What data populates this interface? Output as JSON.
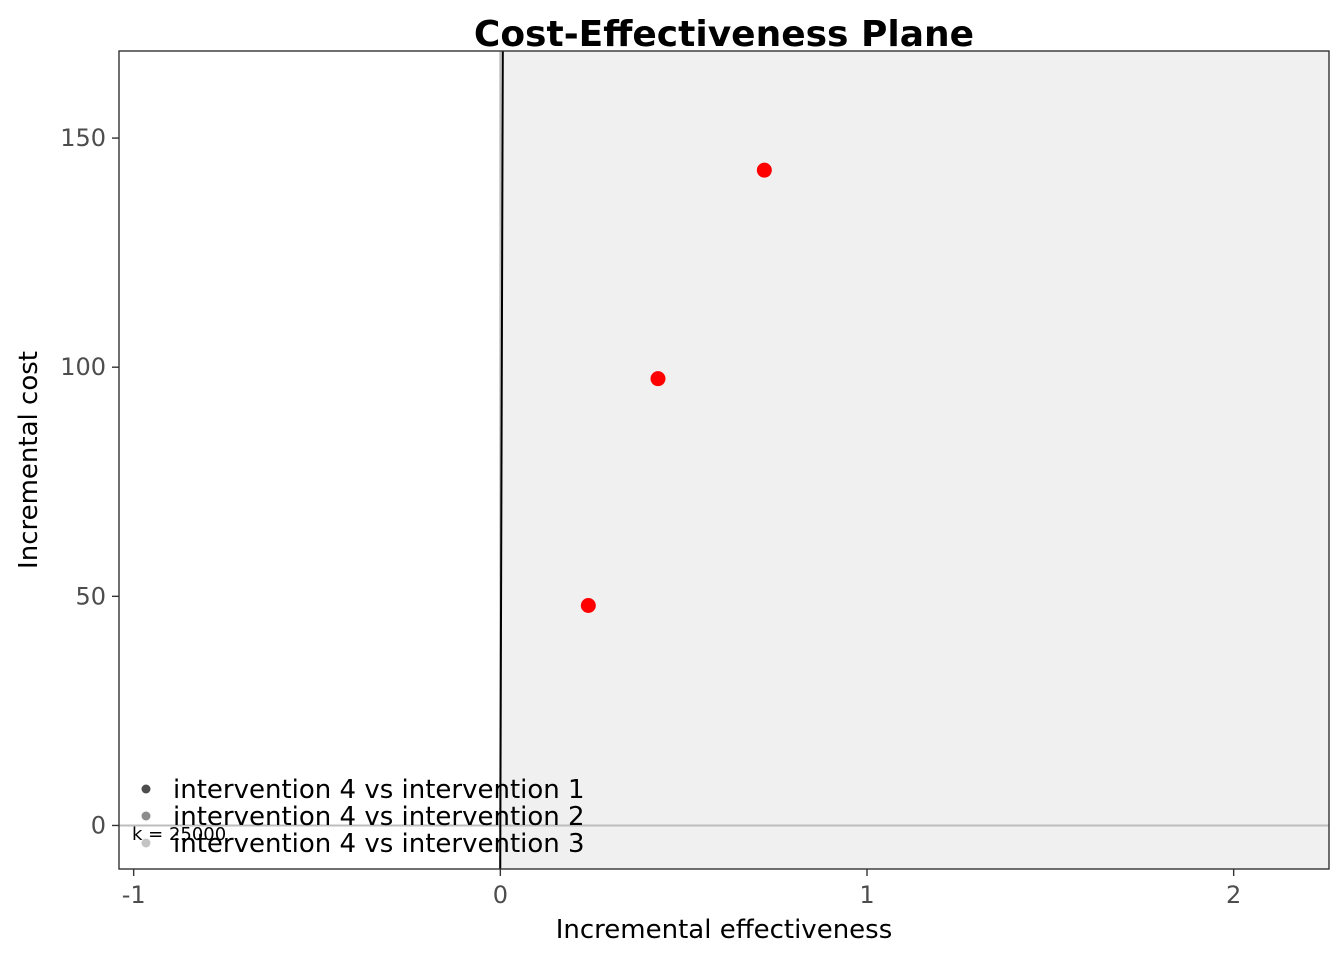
{
  "chart_data": {
    "type": "scatter",
    "title": "Cost-Effectiveness Plane",
    "xlabel": "Incremental effectiveness",
    "ylabel": "Incremental cost",
    "xlim": [
      -1.04,
      2.26
    ],
    "ylim": [
      -9.5,
      169
    ],
    "x_ticks": [
      -1,
      0,
      1,
      2
    ],
    "x_tick_labels": [
      "-1",
      "0",
      "1",
      "2"
    ],
    "y_ticks": [
      0,
      50,
      100,
      150
    ],
    "y_tick_labels": [
      "0",
      "50",
      "100",
      "150"
    ],
    "grid": false,
    "legend_position": "bottom-left",
    "series": [
      {
        "name": "intervention 4 vs intervention 1",
        "legend_color": "#4d4d4d",
        "point_color": "#ff0000",
        "x": [
          0.24
        ],
        "y": [
          48
        ]
      },
      {
        "name": "intervention 4 vs intervention 2",
        "legend_color": "#8c8c8c",
        "point_color": "#ff0000",
        "x": [
          0.43
        ],
        "y": [
          97.5
        ]
      },
      {
        "name": "intervention 4 vs intervention 3",
        "legend_color": "#c4c4c4",
        "point_color": "#ff0000",
        "x": [
          0.72
        ],
        "y": [
          143
        ]
      }
    ],
    "wtp_label": "k = 25000",
    "wtp_threshold": 25000,
    "region_color": "#f0f0f0",
    "zero_line_color": "#bdbdbd"
  }
}
